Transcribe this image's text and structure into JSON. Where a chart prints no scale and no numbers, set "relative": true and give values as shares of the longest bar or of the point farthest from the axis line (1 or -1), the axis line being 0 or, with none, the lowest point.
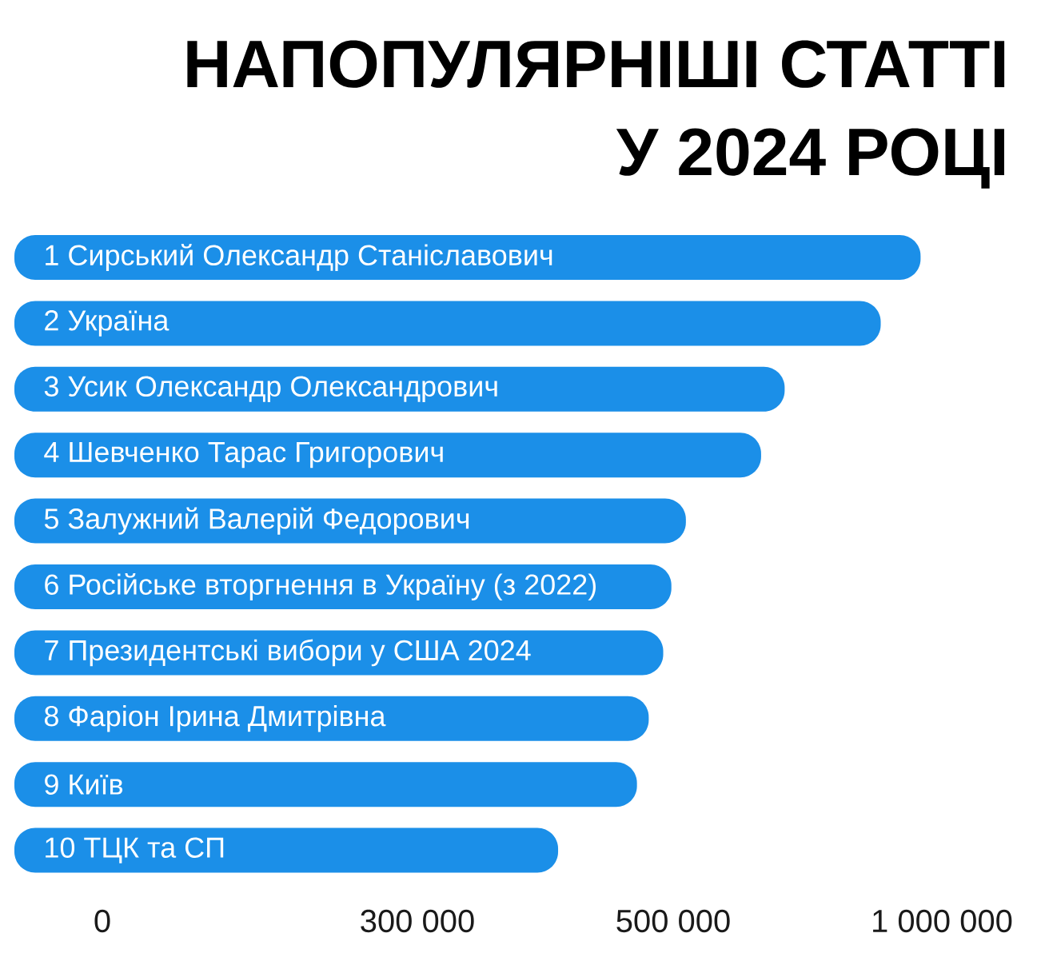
{
  "chart_data": {
    "type": "bar",
    "orientation": "horizontal",
    "relative": true,
    "title": "НАПОПУЛЯРНІШІ СТАТТІ У 2024 РОЦІ",
    "categories": [
      "1 Сирський Олександр Станіславович",
      "2 Україна",
      "3 Усик Олександр Олександрович",
      "4 Шевченко Тарас Григорович",
      "5 Залужний Валерій Федорович",
      "6 Російське вторгнення в Україну (з 2022)",
      "7 Президентські вибори у США 2024",
      "8 Фаріон Ірина Дмитрівна",
      "9 Київ",
      "10 ТЦК та СП"
    ],
    "values": [
      1,
      0.956,
      0.85,
      0.824,
      0.741,
      0.725,
      0.716,
      0.7,
      0.687,
      0.6
    ],
    "color": "#1b8fe8",
    "annotations": [
      "0",
      "300 000",
      "500 000",
      "1 000 000"
    ]
  }
}
